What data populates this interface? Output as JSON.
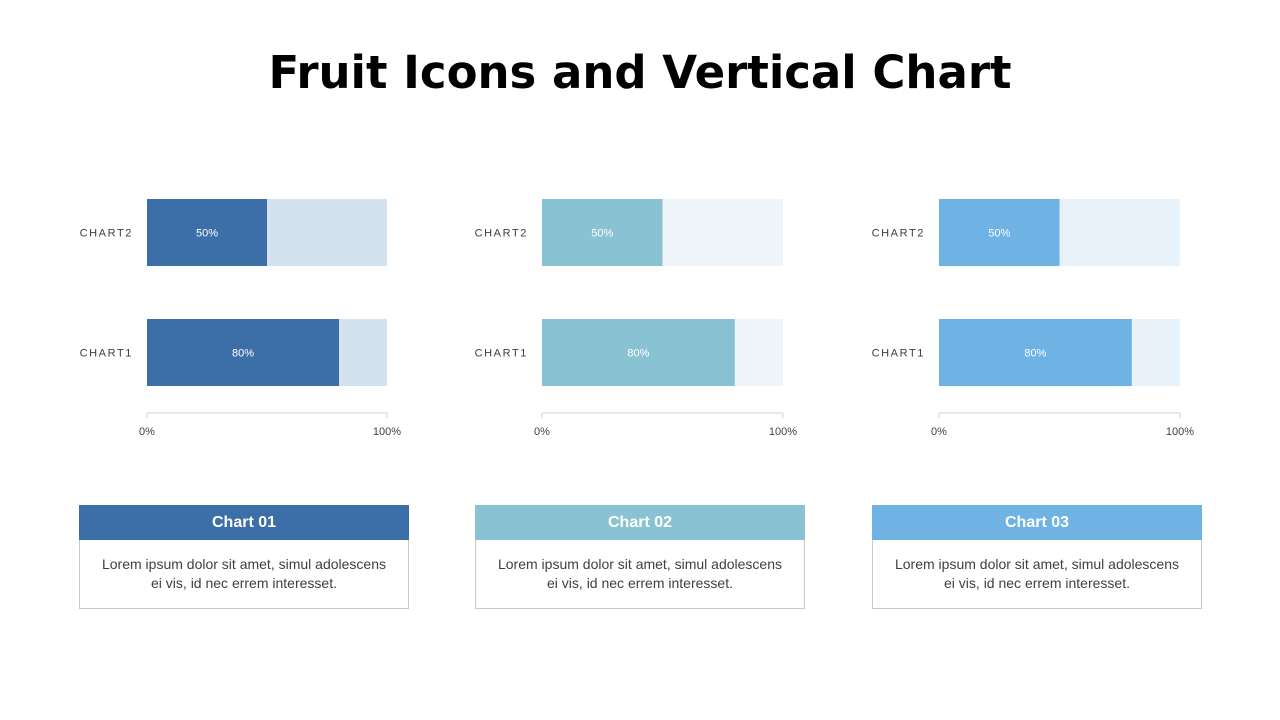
{
  "title": "Fruit Icons and Vertical Chart",
  "colors": {
    "chart1": {
      "fill": "#3c6ea8",
      "track": "#d4e2f0"
    },
    "chart2": {
      "fill": "#89c3d3",
      "track": "#eef5f8"
    },
    "chart3": {
      "fill": "#6eb3e4",
      "track": "#e8f2fb"
    }
  },
  "chart_data": [
    {
      "type": "bar",
      "orientation": "horizontal",
      "categories": [
        "CHART2",
        "CHART1"
      ],
      "values": [
        50,
        80
      ],
      "data_labels": [
        "50%",
        "80%"
      ],
      "xlim": [
        0,
        100
      ],
      "x_ticks": [
        "0%",
        "100%"
      ],
      "grid": false
    },
    {
      "type": "bar",
      "orientation": "horizontal",
      "categories": [
        "CHART2",
        "CHART1"
      ],
      "values": [
        50,
        80
      ],
      "data_labels": [
        "50%",
        "80%"
      ],
      "xlim": [
        0,
        100
      ],
      "x_ticks": [
        "0%",
        "100%"
      ],
      "grid": false
    },
    {
      "type": "bar",
      "orientation": "horizontal",
      "categories": [
        "CHART2",
        "CHART1"
      ],
      "values": [
        50,
        80
      ],
      "data_labels": [
        "50%",
        "80%"
      ],
      "xlim": [
        0,
        100
      ],
      "x_ticks": [
        "0%",
        "100%"
      ],
      "grid": false
    }
  ],
  "cards": [
    {
      "title": "Chart 01",
      "text": "Lorem ipsum dolor sit amet, simul adolescens ei vis, id nec errem interesset."
    },
    {
      "title": "Chart 02",
      "text": "Lorem ipsum dolor sit amet, simul adolescens ei vis, id nec errem interesset."
    },
    {
      "title": "Chart 03",
      "text": "Lorem ipsum dolor sit amet, simul adolescens ei vis, id nec errem interesset."
    }
  ]
}
